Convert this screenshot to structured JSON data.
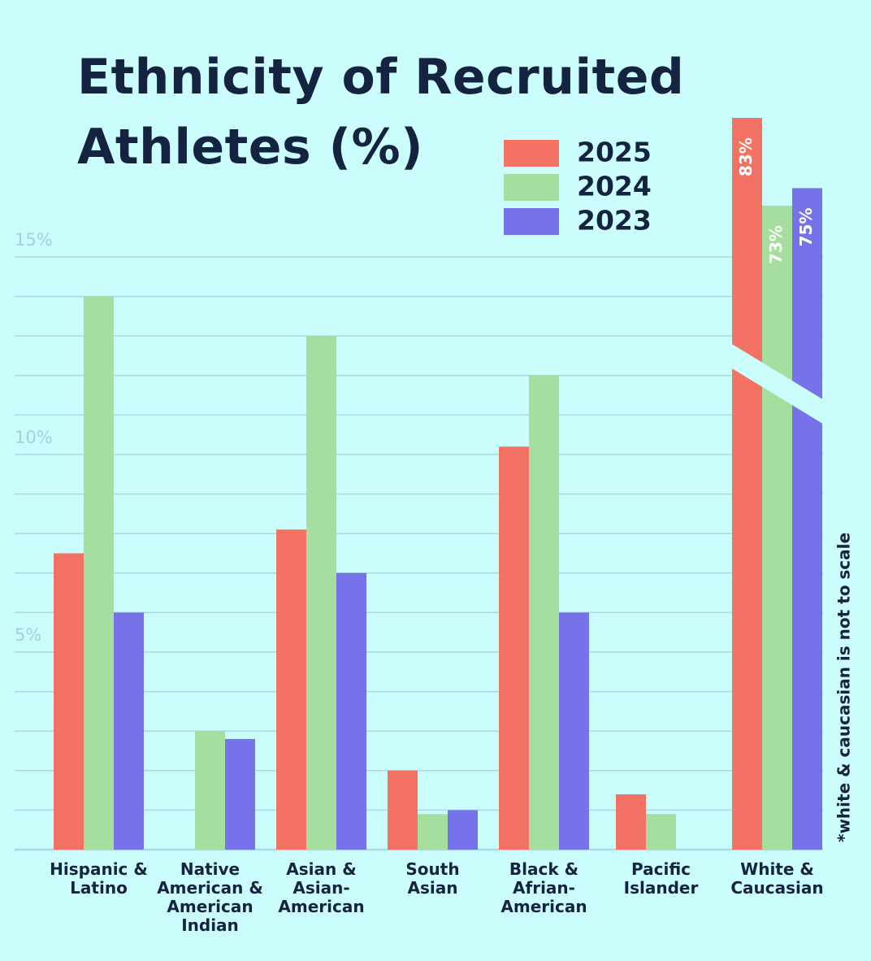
{
  "chart_data": {
    "type": "bar",
    "title": "Ethnicity of Recruited\nAthletes (%)",
    "categories": [
      "Hispanic &\nLatino",
      "Native\nAmerican &\nAmerican\nIndian",
      "Asian &\nAsian-\nAmerican",
      "South\nAsian",
      "Black &\nAfrian-\nAmerican",
      "Pacific\nIslander",
      "White &\nCaucasian"
    ],
    "series": [
      {
        "name": "2025",
        "color": "#f47264",
        "values": [
          7.5,
          null,
          8.1,
          2,
          10.2,
          1.4,
          83
        ],
        "value_labels": [
          null,
          null,
          null,
          null,
          null,
          null,
          "83%"
        ]
      },
      {
        "name": "2024",
        "color": "#a6dea0",
        "values": [
          14,
          3,
          13,
          0.9,
          12,
          0.9,
          73
        ],
        "value_labels": [
          null,
          null,
          null,
          null,
          null,
          null,
          "73%"
        ]
      },
      {
        "name": "2023",
        "color": "#7672ea",
        "values": [
          6,
          2.8,
          7,
          1,
          6,
          null,
          75
        ],
        "value_labels": [
          null,
          null,
          null,
          null,
          null,
          null,
          "75%"
        ]
      }
    ],
    "ylim": [
      0,
      15
    ],
    "yticks": [
      {
        "value": 5,
        "label": "5%"
      },
      {
        "value": 10,
        "label": "10%"
      },
      {
        "value": 15,
        "label": "15%"
      }
    ],
    "minor_yticks": [
      1,
      2,
      3,
      4,
      6,
      7,
      8,
      9,
      11,
      12,
      13,
      14
    ],
    "grid": true,
    "not_to_scale_category": 6,
    "note": "*white & caucasian is not to scale"
  }
}
